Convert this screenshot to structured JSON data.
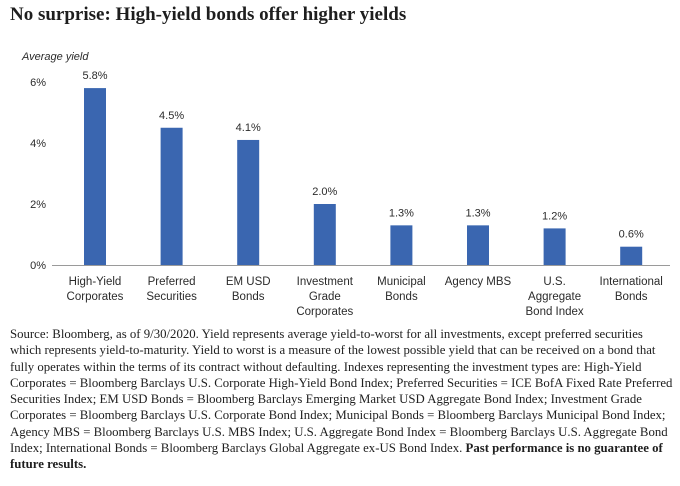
{
  "title": "No surprise: High-yield bonds offer higher yields",
  "colors": {
    "bar": "#3a66b0",
    "text": "#2b2b2b",
    "axis": "#9a9a9a"
  },
  "chart_data": {
    "type": "bar",
    "title": "No surprise: High-yield bonds offer higher yields",
    "ylabel": "Average yield",
    "xlabel": "",
    "categories": [
      [
        "High-Yield",
        "Corporates"
      ],
      [
        "Preferred",
        "Securities"
      ],
      [
        "EM USD",
        "Bonds"
      ],
      [
        "Investment",
        "Grade",
        "Corporates"
      ],
      [
        "Municipal",
        "Bonds"
      ],
      [
        "Agency MBS"
      ],
      [
        "U.S.",
        "Aggregate",
        "Bond Index"
      ],
      [
        "International",
        "Bonds"
      ]
    ],
    "values": [
      5.8,
      4.5,
      4.1,
      2.0,
      1.3,
      1.3,
      1.2,
      0.6
    ],
    "value_labels": [
      "5.8%",
      "4.5%",
      "4.1%",
      "2.0%",
      "1.3%",
      "1.3%",
      "1.2%",
      "0.6%"
    ],
    "yticks": [
      0,
      2,
      4,
      6
    ],
    "ytick_labels": [
      "0%",
      "2%",
      "4%",
      "6%"
    ],
    "ylim": [
      0,
      6.5
    ],
    "grid": false,
    "legend": "none"
  },
  "source": {
    "text": "Source: Bloomberg, as of 9/30/2020. Yield represents average yield-to-worst for all investments, except preferred securities which represents yield-to-maturity. Yield to worst is a measure of the lowest possible yield that can be received on a bond that fully operates within the terms of its contract without defaulting. Indexes representing the investment types are: High-Yield Corporates = Bloomberg Barclays U.S. Corporate High-Yield Bond Index; Preferred Securities = ICE BofA Fixed Rate Preferred Securities Index; EM USD Bonds = Bloomberg Barclays Emerging Market USD Aggregate Bond Index; Investment Grade Corporates = Bloomberg Barclays U.S. Corporate Bond Index; Municipal Bonds = Bloomberg Barclays Municipal Bond Index; Agency MBS = Bloomberg Barclays U.S. MBS Index; U.S. Aggregate Bond Index = Bloomberg Barclays U.S. Aggregate Bond Index; International Bonds =  Bloomberg Barclays Global Aggregate ex-US Bond Index. ",
    "disclaimer": "Past performance is no guarantee of future results."
  }
}
